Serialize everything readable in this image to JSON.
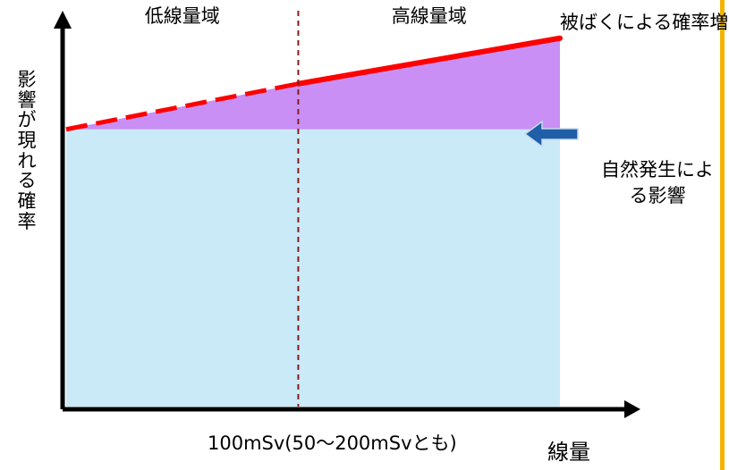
{
  "colors": {
    "baseline_fill": "#cbeaf8",
    "excess_fill": "#c98ff5",
    "risk_line": "#ff0000",
    "divider": "#8b1a1a",
    "arrow_fill": "#1e5fa8",
    "arrow_stroke": "#c9d8ec",
    "axis": "#000000",
    "side_bar": "#f2b400"
  },
  "icons": {
    "pointer_arrow": "left-arrow-icon"
  },
  "chart_data": {
    "type": "area",
    "title": "",
    "xlabel": "線量",
    "ylabel": "影響が現れる確率",
    "xlim": [
      0,
      10
    ],
    "ylim": [
      0,
      10
    ],
    "grid": false,
    "threshold": {
      "x": 4.7,
      "label": "100mSv(50〜200mSvとも)"
    },
    "regions": [
      {
        "label": "低線量域",
        "from": 0,
        "to": 4.7
      },
      {
        "label": "高線量域",
        "from": 4.7,
        "to": 10
      }
    ],
    "series": [
      {
        "name": "自然発生による影響",
        "values": [
          [
            0,
            7.3
          ],
          [
            10,
            7.3
          ]
        ]
      },
      {
        "name": "被ばくによる確率増加",
        "values": [
          [
            0,
            7.3
          ],
          [
            4.7,
            8.5
          ],
          [
            10,
            9.7
          ]
        ]
      }
    ]
  }
}
